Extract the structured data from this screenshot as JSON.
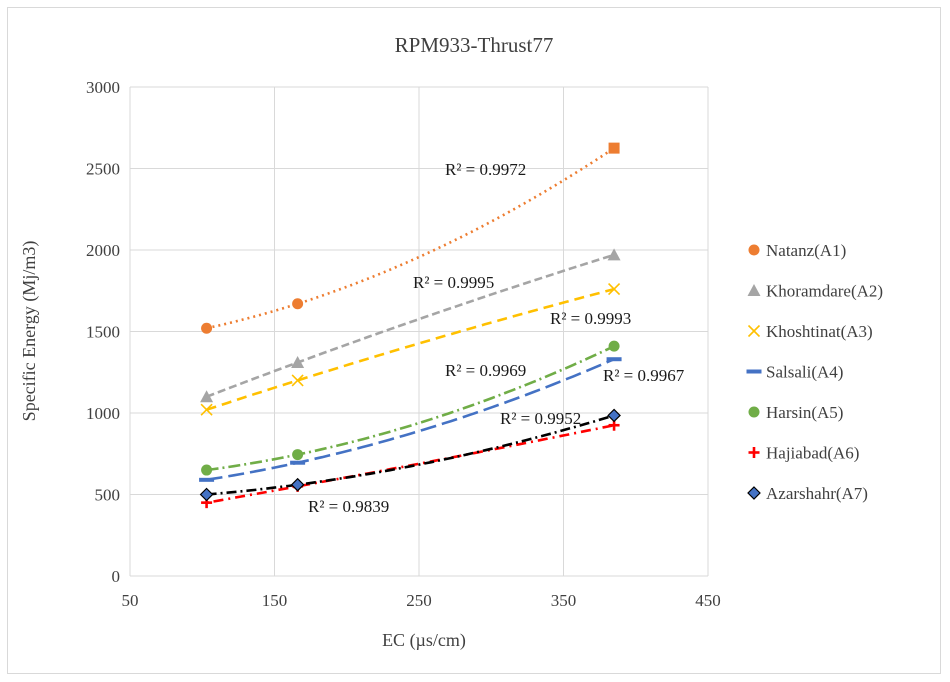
{
  "chart_data": {
    "type": "scatter",
    "title": "RPM933-Thrust77",
    "xlabel": "EC (µs/cm)",
    "ylabel": "Specific Energy (Mj/m3)",
    "xlim": [
      50,
      450
    ],
    "ylim": [
      0,
      3000
    ],
    "x_ticks": [
      "50",
      "150",
      "250",
      "350",
      "450"
    ],
    "y_ticks": [
      "0",
      "500",
      "1000",
      "1500",
      "2000",
      "2500",
      "3000"
    ],
    "grid": true,
    "legend_position": "right",
    "x": [
      103,
      166,
      385
    ],
    "series": [
      {
        "name": "Natanz(A1)",
        "values": [
          1520,
          1670,
          2625
        ],
        "color": "#ED7D31",
        "marker": "circle",
        "trend_dash": "2,4",
        "r2": "R² = 0.9972"
      },
      {
        "name": "Khoramdare(A2)",
        "values": [
          1100,
          1310,
          1970
        ],
        "color": "#A5A5A5",
        "marker": "triangle",
        "trend_dash": "8,4",
        "r2": "R² = 0.9995"
      },
      {
        "name": "Khoshtinat(A3)",
        "values": [
          1020,
          1200,
          1760
        ],
        "color": "#FFC000",
        "marker": "x",
        "trend_dash": "10,6",
        "r2": "R² = 0.9993"
      },
      {
        "name": "Salsali(A4)",
        "values": [
          590,
          695,
          1330
        ],
        "color": "#4472C4",
        "marker": "dash",
        "trend_dash": "16,6",
        "r2": "R² = 0.9969"
      },
      {
        "name": "Harsin(A5)",
        "values": [
          650,
          745,
          1410
        ],
        "color": "#70AD47",
        "marker": "circle",
        "trend_dash": "12,4,2,4",
        "r2": "R² = 0.9967"
      },
      {
        "name": "Hajiabad(A6)",
        "values": [
          450,
          550,
          925
        ],
        "color": "#FF0000",
        "marker": "plus",
        "trend_dash": "2,5,10,5",
        "r2": "R² = 0.9839"
      },
      {
        "name": "Azarshahr(A7)",
        "values": [
          500,
          560,
          985
        ],
        "color": "#4472C4",
        "marker": "diamond",
        "trend_color": "#000000",
        "trend_dash": "10,4,2,4",
        "r2": "R² = 0.9952"
      }
    ]
  }
}
